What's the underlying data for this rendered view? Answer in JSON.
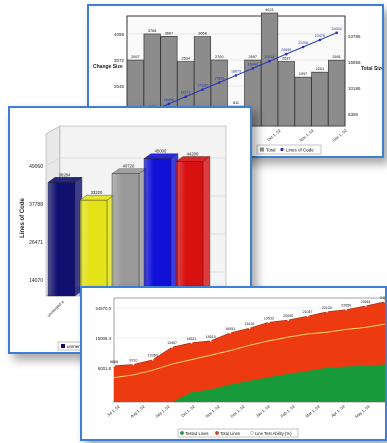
{
  "chart_data": [
    {
      "type": "bar",
      "chart": "churn-bar-with-total-line",
      "ylabel": "Change Size",
      "y2label": "Total Size",
      "yticks": [
        "4098",
        "3072",
        "2048",
        "1024"
      ],
      "y2ticks": [
        "23786",
        "16958",
        "10186",
        "5356"
      ],
      "ylim": [
        0,
        4500
      ],
      "xticks": [
        "Jul 1, 02",
        "Aug 1, 02",
        "Sep 1, 02",
        "Oct 1, 02",
        "Nov 1, 02",
        "Dec 1, 02"
      ],
      "bars": [
        2697,
        3766,
        3667,
        2634,
        3658,
        2700,
        811,
        2697,
        4621,
        2637,
        1997,
        2201,
        2691
      ],
      "line_labels": [
        "15076",
        "15896",
        "16455",
        "16771",
        "17120",
        "17801",
        "18673",
        "19440",
        "20114",
        "20695",
        "21206",
        "23476",
        "24004"
      ],
      "legend": "Total",
      "legend2": "Lines of Code",
      "colors": {
        "bar": "#8c8c8c",
        "line": "#2030c0"
      }
    },
    {
      "type": "bar",
      "chart": "3d-bar",
      "ylabel": "Lines of Code",
      "yticks": [
        "49060",
        "37788",
        "26471",
        "14070"
      ],
      "ylim": [
        6000,
        52000
      ],
      "categories": [
        "unmerged a",
        "merged b",
        "c",
        "d",
        "e"
      ],
      "values": [
        38284,
        33220,
        40720,
        45000,
        44200
      ],
      "value_labels": [
        "38284",
        "33220",
        "40720",
        "45000",
        "44200"
      ],
      "legend": "unmerged",
      "colors": [
        "#101070",
        "#e4e419",
        "#9a9a9a",
        "#1010d8",
        "#d81010"
      ]
    },
    {
      "type": "area",
      "chart": "stacked-area-line-totals",
      "yticks": [
        "24570.0",
        "15008.4",
        "6001.8"
      ],
      "ylim": [
        0,
        25500
      ],
      "xticks": [
        "Jul 1, 02",
        "Aug 1, 02",
        "Sep 1, 02",
        "Oct 1, 02",
        "Nov 1, 02",
        "Dec 1, 02",
        "Jan 1, 03",
        "Feb 1, 03",
        "Mar 1, 03",
        "Apr 1, 03",
        "May 1, 03"
      ],
      "top_series": [
        8868,
        9210,
        10360,
        13457,
        14521,
        15010,
        16951,
        18116,
        19533,
        20090,
        21047,
        22120,
        22650,
        23561,
        24570
      ],
      "top_labels": [
        "8868",
        "9210",
        "10360",
        "13457",
        "14521",
        "15010",
        "16951",
        "18116",
        "19533",
        "20090",
        "21047",
        "22120",
        "22650",
        "23561",
        "24570"
      ],
      "mid_series": [
        5980,
        6650,
        7800,
        9300,
        10400,
        11500,
        12600,
        13900,
        15000,
        15900,
        16700,
        17100,
        17800,
        18300,
        19100
      ],
      "bottom_series": [
        0,
        0,
        0,
        0,
        2400,
        3100,
        4300,
        5200,
        6100,
        6900,
        7600,
        8400,
        8700,
        8900,
        9200
      ],
      "legend": [
        "Tested Lines",
        "Total Lines",
        "Line Test Ability (%)"
      ],
      "colors": {
        "top": "#ee3a10",
        "bottom": "#189a3a",
        "line": "#ffd36a"
      }
    }
  ]
}
